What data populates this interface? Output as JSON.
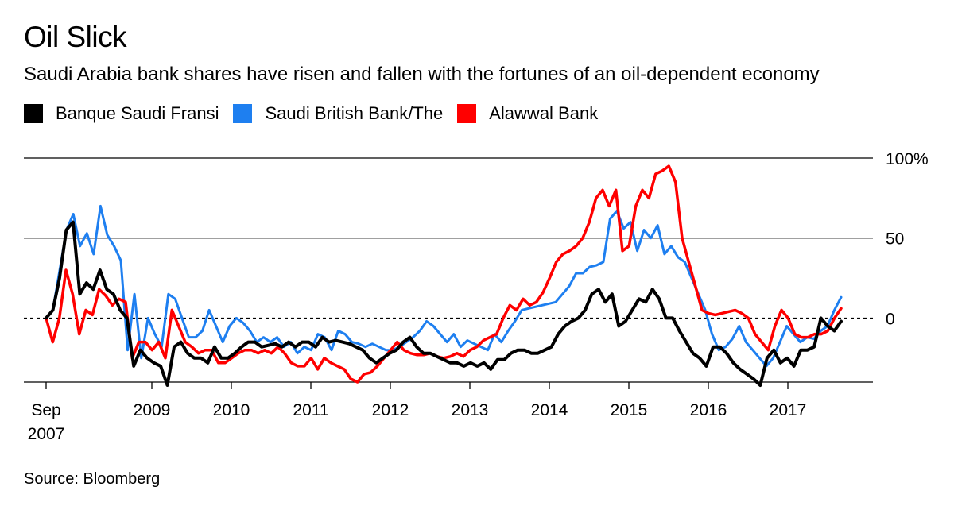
{
  "title": "Oil Slick",
  "subtitle": "Saudi Arabia bank shares have risen and fallen with the fortunes of an oil-dependent economy",
  "source": "Source: Bloomberg",
  "legend": [
    {
      "label": "Banque Saudi Fransi",
      "color": "#000000"
    },
    {
      "label": "Saudi British Bank/The",
      "color": "#1e7ff0"
    },
    {
      "label": "Alawwal Bank",
      "color": "#ff0000"
    }
  ],
  "chart_data": {
    "type": "line",
    "title": "Oil Slick",
    "ylabel": "",
    "xlabel": "",
    "ylim": [
      -40,
      100
    ],
    "y_ticks": [
      {
        "value": 100,
        "label": "100%",
        "style": "solid"
      },
      {
        "value": 50,
        "label": "50",
        "style": "solid"
      },
      {
        "value": 0,
        "label": "0",
        "style": "dashed"
      }
    ],
    "x_start": 2007.67,
    "x_end": 2017.67,
    "x_ticks": [
      {
        "value": 2007.67,
        "label": "Sep",
        "label2": "2007"
      },
      {
        "value": 2009.0,
        "label": "2009"
      },
      {
        "value": 2010.0,
        "label": "2010"
      },
      {
        "value": 2011.0,
        "label": "2011"
      },
      {
        "value": 2012.0,
        "label": "2012"
      },
      {
        "value": 2013.0,
        "label": "2013"
      },
      {
        "value": 2014.0,
        "label": "2014"
      },
      {
        "value": 2015.0,
        "label": "2015"
      },
      {
        "value": 2016.0,
        "label": "2016"
      },
      {
        "value": 2017.0,
        "label": "2017"
      }
    ],
    "series": [
      {
        "name": "Saudi British Bank/The",
        "color": "#1e7ff0",
        "values": [
          0,
          5,
          30,
          55,
          65,
          45,
          53,
          40,
          70,
          52,
          45,
          36,
          -20,
          15,
          -25,
          0,
          -10,
          -18,
          15,
          12,
          0,
          -12,
          -12,
          -8,
          5,
          -5,
          -15,
          -5,
          0,
          -3,
          -8,
          -15,
          -12,
          -15,
          -12,
          -18,
          -15,
          -22,
          -18,
          -20,
          -10,
          -12,
          -20,
          -8,
          -10,
          -15,
          -16,
          -18,
          -16,
          -18,
          -20,
          -20,
          -18,
          -15,
          -12,
          -8,
          -2,
          -5,
          -10,
          -15,
          -10,
          -18,
          -14,
          -16,
          -18,
          -20,
          -10,
          -15,
          -8,
          -2,
          5,
          6,
          7,
          8,
          9,
          10,
          15,
          20,
          28,
          28,
          32,
          33,
          35,
          62,
          67,
          56,
          60,
          42,
          55,
          50,
          58,
          40,
          45,
          38,
          35,
          25,
          15,
          5,
          -10,
          -20,
          -18,
          -13,
          -5,
          -15,
          -20,
          -25,
          -30,
          -25,
          -15,
          -5,
          -10,
          -15,
          -12,
          -13,
          -8,
          -5,
          5,
          13
        ],
        "weight": 3
      },
      {
        "name": "Alawwal Bank",
        "color": "#ff0000",
        "values": [
          0,
          -15,
          0,
          30,
          15,
          -10,
          5,
          2,
          18,
          14,
          8,
          12,
          10,
          -25,
          -15,
          -15,
          -20,
          -15,
          -25,
          5,
          -5,
          -15,
          -18,
          -22,
          -20,
          -20,
          -28,
          -28,
          -25,
          -22,
          -20,
          -20,
          -22,
          -20,
          -22,
          -18,
          -22,
          -28,
          -30,
          -30,
          -25,
          -32,
          -25,
          -28,
          -30,
          -32,
          -38,
          -40,
          -35,
          -34,
          -30,
          -25,
          -20,
          -15,
          -20,
          -22,
          -23,
          -23,
          -22,
          -24,
          -25,
          -24,
          -22,
          -24,
          -20,
          -18,
          -14,
          -12,
          -10,
          0,
          8,
          5,
          12,
          8,
          10,
          16,
          25,
          35,
          40,
          42,
          45,
          50,
          60,
          75,
          80,
          70,
          80,
          42,
          45,
          70,
          80,
          75,
          90,
          92,
          95,
          85,
          50,
          35,
          20,
          5,
          3,
          2,
          3,
          4,
          5,
          3,
          0,
          -10,
          -15,
          -20,
          -5,
          5,
          0,
          -10,
          -12,
          -12,
          -10,
          -10,
          -8,
          0,
          6
        ],
        "weight": 3.5
      },
      {
        "name": "Banque Saudi Fransi",
        "color": "#000000",
        "values": [
          0,
          5,
          25,
          55,
          60,
          15,
          22,
          18,
          30,
          18,
          15,
          5,
          0,
          -30,
          -20,
          -25,
          -28,
          -30,
          -42,
          -18,
          -15,
          -22,
          -25,
          -25,
          -28,
          -18,
          -25,
          -25,
          -22,
          -18,
          -15,
          -15,
          -18,
          -17,
          -16,
          -18,
          -15,
          -18,
          -15,
          -15,
          -18,
          -12,
          -15,
          -14,
          -15,
          -16,
          -18,
          -20,
          -25,
          -28,
          -25,
          -22,
          -20,
          -15,
          -12,
          -18,
          -22,
          -22,
          -24,
          -26,
          -28,
          -28,
          -30,
          -28,
          -30,
          -28,
          -32,
          -26,
          -26,
          -22,
          -20,
          -20,
          -22,
          -22,
          -20,
          -18,
          -10,
          -5,
          -2,
          0,
          5,
          15,
          18,
          10,
          15,
          -5,
          -2,
          5,
          12,
          10,
          18,
          12,
          0,
          0,
          -8,
          -15,
          -22,
          -25,
          -30,
          -18,
          -18,
          -22,
          -28,
          -32,
          -35,
          -38,
          -42,
          -25,
          -20,
          -28,
          -25,
          -30,
          -20,
          -20,
          -18,
          0,
          -5,
          -8,
          -2
        ],
        "weight": 4
      }
    ]
  }
}
